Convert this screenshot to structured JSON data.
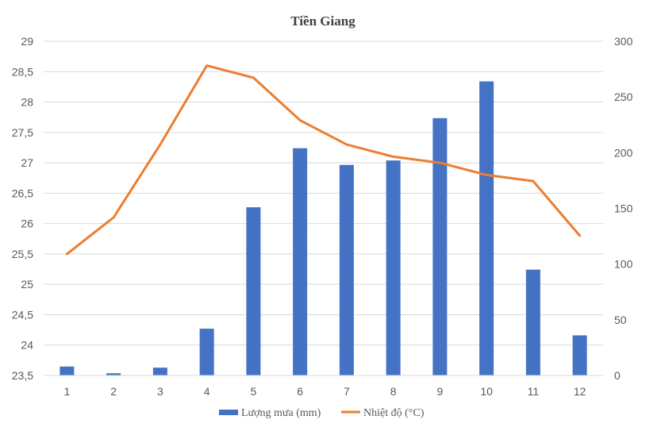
{
  "chart_data": {
    "type": "bar",
    "title": "Tiền Giang",
    "categories": [
      "1",
      "2",
      "3",
      "4",
      "5",
      "6",
      "7",
      "8",
      "9",
      "10",
      "11",
      "12"
    ],
    "series": [
      {
        "name": "Lượng mưa (mm)",
        "type": "bar",
        "axis": "right",
        "color": "#4472C4",
        "values": [
          8,
          2,
          7,
          42,
          151,
          204,
          189,
          193,
          231,
          264,
          95,
          36
        ]
      },
      {
        "name": "Nhiệt độ (°C)",
        "type": "line",
        "axis": "left",
        "color": "#ED7D31",
        "values": [
          25.5,
          26.1,
          27.3,
          28.6,
          28.4,
          27.7,
          27.3,
          27.1,
          27.0,
          26.8,
          26.7,
          25.8
        ]
      }
    ],
    "y_left": {
      "min": 23.5,
      "max": 29,
      "ticks": [
        "23,5",
        "24",
        "24,5",
        "25",
        "25,5",
        "26",
        "26,5",
        "27",
        "27,5",
        "28",
        "28,5",
        "29"
      ]
    },
    "y_right": {
      "min": 0,
      "max": 300,
      "ticks": [
        "0",
        "50",
        "100",
        "150",
        "200",
        "250",
        "300"
      ]
    },
    "grid": true,
    "legend_position": "bottom"
  }
}
